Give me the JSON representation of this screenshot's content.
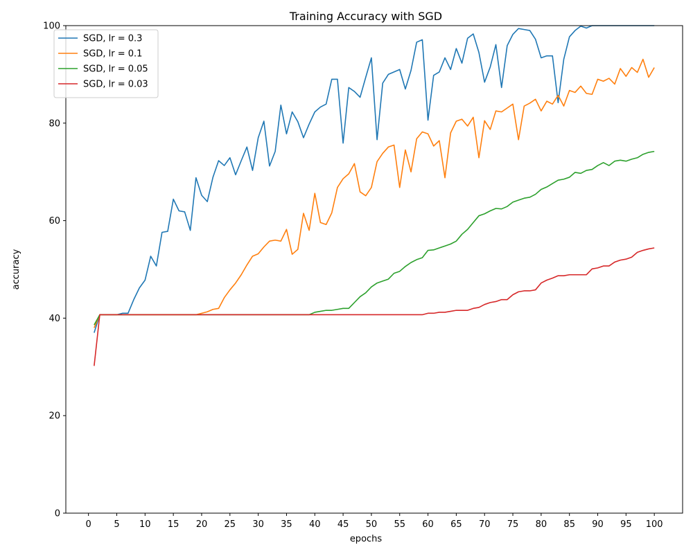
{
  "chart_data": {
    "type": "line",
    "title": "Training Accuracy with SGD",
    "xlabel": "epochs",
    "ylabel": "accuracy",
    "xlim": [
      -4,
      105
    ],
    "ylim": [
      0,
      100
    ],
    "xticks": [
      0,
      5,
      10,
      15,
      20,
      25,
      30,
      35,
      40,
      45,
      50,
      55,
      60,
      65,
      70,
      75,
      80,
      85,
      90,
      95,
      100
    ],
    "yticks": [
      0,
      20,
      40,
      60,
      80,
      100
    ],
    "grid": false,
    "legend_position": "top-left",
    "series": [
      {
        "name": "SGD, lr = 0.3",
        "color": "#1f77b4",
        "values": [
          37.0,
          40.7,
          40.7,
          40.7,
          40.7,
          41.0,
          41.0,
          43.8,
          46.2,
          47.8,
          52.7,
          50.7,
          57.6,
          57.8,
          64.4,
          62.0,
          61.8,
          58.0,
          68.8,
          65.2,
          63.9,
          68.9,
          72.3,
          71.3,
          72.9,
          69.4,
          72.3,
          75.1,
          70.3,
          77.0,
          80.4,
          71.2,
          74.2,
          83.7,
          77.8,
          82.3,
          80.3,
          77.0,
          79.8,
          82.3,
          83.3,
          83.9,
          89.0,
          89.0,
          75.9,
          87.3,
          86.5,
          85.3,
          89.4,
          93.4,
          76.6,
          88.2,
          90.0,
          90.5,
          91.0,
          87.0,
          90.8,
          96.6,
          97.1,
          80.6,
          89.8,
          90.5,
          93.4,
          91.0,
          95.3,
          92.3,
          97.4,
          98.3,
          94.5,
          88.4,
          91.5,
          96.1,
          87.3,
          95.9,
          98.2,
          99.4,
          99.2,
          99.0,
          97.2,
          93.4,
          93.8,
          93.8,
          84.2,
          93.1,
          97.7,
          99.0,
          99.9,
          99.5,
          100,
          100,
          100,
          100,
          100,
          100,
          100,
          100,
          100,
          100,
          100,
          100
        ]
      },
      {
        "name": "SGD, lr = 0.1",
        "color": "#ff7f0e",
        "values": [
          38.0,
          40.7,
          40.7,
          40.7,
          40.7,
          40.7,
          40.7,
          40.7,
          40.7,
          40.7,
          40.7,
          40.7,
          40.7,
          40.7,
          40.7,
          40.7,
          40.7,
          40.7,
          40.7,
          41.0,
          41.3,
          41.8,
          42.0,
          44.2,
          45.8,
          47.2,
          48.9,
          50.9,
          52.7,
          53.2,
          54.6,
          55.8,
          56.0,
          55.8,
          58.2,
          53.1,
          54.1,
          61.5,
          58.0,
          65.6,
          59.6,
          59.2,
          61.6,
          66.8,
          68.6,
          69.6,
          71.7,
          65.9,
          65.1,
          66.8,
          72.1,
          73.8,
          75.1,
          75.5,
          66.8,
          74.5,
          70.0,
          76.8,
          78.2,
          77.8,
          75.3,
          76.4,
          68.8,
          78.0,
          80.4,
          80.8,
          79.4,
          81.2,
          72.9,
          80.5,
          78.7,
          82.5,
          82.3,
          83.1,
          83.9,
          76.6,
          83.5,
          84.1,
          84.9,
          82.5,
          84.5,
          83.9,
          85.7,
          83.5,
          86.7,
          86.3,
          87.6,
          86.1,
          85.9,
          89.0,
          88.6,
          89.2,
          88.0,
          91.2,
          89.6,
          91.4,
          90.4,
          93.1,
          89.4,
          91.4
        ]
      },
      {
        "name": "SGD, lr = 0.05",
        "color": "#2ca02c",
        "values": [
          38.6,
          40.7,
          40.7,
          40.7,
          40.7,
          40.7,
          40.7,
          40.7,
          40.7,
          40.7,
          40.7,
          40.7,
          40.7,
          40.7,
          40.7,
          40.7,
          40.7,
          40.7,
          40.7,
          40.7,
          40.7,
          40.7,
          40.7,
          40.7,
          40.7,
          40.7,
          40.7,
          40.7,
          40.7,
          40.7,
          40.7,
          40.7,
          40.7,
          40.7,
          40.7,
          40.7,
          40.7,
          40.7,
          40.7,
          41.2,
          41.4,
          41.6,
          41.6,
          41.8,
          42.0,
          42.0,
          43.2,
          44.4,
          45.2,
          46.4,
          47.2,
          47.6,
          48.0,
          49.2,
          49.6,
          50.6,
          51.4,
          52.0,
          52.4,
          53.9,
          54.0,
          54.4,
          54.8,
          55.2,
          55.8,
          57.2,
          58.2,
          59.6,
          61.0,
          61.4,
          62.0,
          62.5,
          62.4,
          62.9,
          63.8,
          64.2,
          64.6,
          64.8,
          65.4,
          66.4,
          66.9,
          67.6,
          68.3,
          68.5,
          68.9,
          69.9,
          69.7,
          70.3,
          70.5,
          71.3,
          71.9,
          71.3,
          72.2,
          72.4,
          72.2,
          72.6,
          72.9,
          73.6,
          74.0,
          74.2
        ]
      },
      {
        "name": "SGD, lr = 0.03",
        "color": "#d62728",
        "values": [
          30.2,
          40.7,
          40.7,
          40.7,
          40.7,
          40.7,
          40.7,
          40.7,
          40.7,
          40.7,
          40.7,
          40.7,
          40.7,
          40.7,
          40.7,
          40.7,
          40.7,
          40.7,
          40.7,
          40.7,
          40.7,
          40.7,
          40.7,
          40.7,
          40.7,
          40.7,
          40.7,
          40.7,
          40.7,
          40.7,
          40.7,
          40.7,
          40.7,
          40.7,
          40.7,
          40.7,
          40.7,
          40.7,
          40.7,
          40.7,
          40.7,
          40.7,
          40.7,
          40.7,
          40.7,
          40.7,
          40.7,
          40.7,
          40.7,
          40.7,
          40.7,
          40.7,
          40.7,
          40.7,
          40.7,
          40.7,
          40.7,
          40.7,
          40.7,
          41.0,
          41.0,
          41.2,
          41.2,
          41.4,
          41.6,
          41.6,
          41.6,
          42.0,
          42.2,
          42.8,
          43.2,
          43.4,
          43.8,
          43.8,
          44.8,
          45.4,
          45.6,
          45.6,
          45.8,
          47.2,
          47.8,
          48.2,
          48.7,
          48.7,
          48.9,
          48.9,
          48.9,
          48.9,
          50.1,
          50.3,
          50.7,
          50.7,
          51.5,
          51.9,
          52.1,
          52.5,
          53.5,
          53.9,
          54.2,
          54.4
        ]
      }
    ]
  }
}
